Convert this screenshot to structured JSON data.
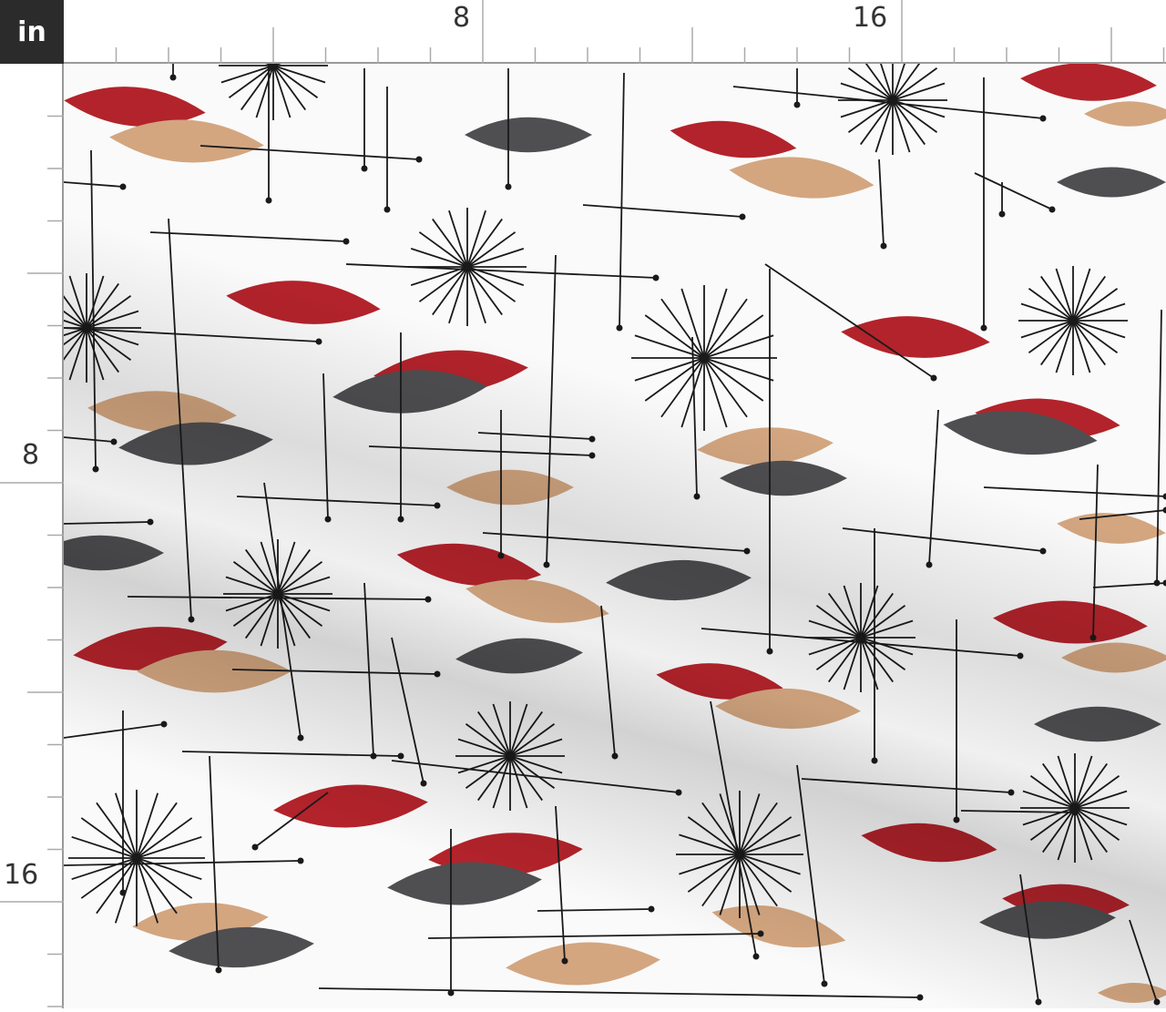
{
  "ruler": {
    "unit": "in",
    "horizontal_labels": [
      "8",
      "16"
    ],
    "vertical_labels": [
      "8",
      "16"
    ]
  },
  "colors": {
    "red": "#b3232b",
    "tan": "#d3a680",
    "gray": "#4f4f52",
    "line": "#1a1a1a"
  }
}
